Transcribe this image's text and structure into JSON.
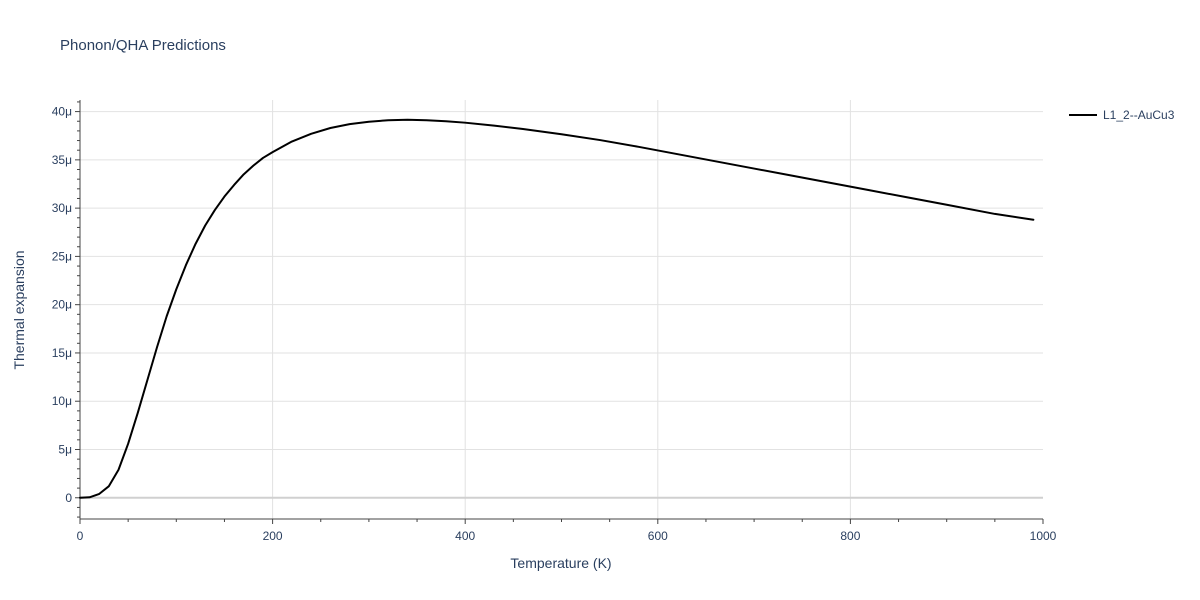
{
  "chart_data": {
    "type": "line",
    "title": "Phonon/QHA Predictions",
    "xlabel": "Temperature (K)",
    "ylabel": "Thermal expansion",
    "xlim": [
      0,
      1000
    ],
    "ylim": [
      -2.2e-06,
      4.12e-05
    ],
    "x_ticks": [
      0,
      200,
      400,
      600,
      800,
      1000
    ],
    "x_tick_labels": [
      "0",
      "200",
      "400",
      "600",
      "800",
      "1000"
    ],
    "y_ticks": [
      0,
      5e-06,
      1e-05,
      1.5e-05,
      2e-05,
      2.5e-05,
      3e-05,
      3.5e-05,
      4e-05
    ],
    "y_tick_labels": [
      "0",
      "5μ",
      "10μ",
      "15μ",
      "20μ",
      "25μ",
      "30μ",
      "35μ",
      "40μ"
    ],
    "grid": true,
    "legend_position": "top-right",
    "series": [
      {
        "name": "L1_2--AuCu3",
        "color": "#000000",
        "x": [
          0,
          10,
          20,
          30,
          40,
          50,
          60,
          70,
          80,
          90,
          100,
          110,
          120,
          130,
          140,
          150,
          160,
          170,
          180,
          190,
          200,
          220,
          240,
          260,
          280,
          300,
          320,
          340,
          360,
          380,
          400,
          430,
          460,
          500,
          540,
          580,
          620,
          660,
          700,
          740,
          780,
          820,
          860,
          900,
          950,
          990
        ],
        "y": [
          0,
          5e-08,
          4e-07,
          1.2e-06,
          2.9e-06,
          5.6e-06,
          8.8e-06,
          1.22e-05,
          1.56e-05,
          1.88e-05,
          2.16e-05,
          2.41e-05,
          2.63e-05,
          2.82e-05,
          2.98e-05,
          3.12e-05,
          3.24e-05,
          3.35e-05,
          3.44e-05,
          3.52e-05,
          3.58e-05,
          3.69e-05,
          3.77e-05,
          3.83e-05,
          3.87e-05,
          3.895e-05,
          3.91e-05,
          3.915e-05,
          3.91e-05,
          3.9e-05,
          3.885e-05,
          3.855e-05,
          3.82e-05,
          3.765e-05,
          3.705e-05,
          3.635e-05,
          3.56e-05,
          3.485e-05,
          3.41e-05,
          3.335e-05,
          3.26e-05,
          3.185e-05,
          3.11e-05,
          3.035e-05,
          2.94e-05,
          2.88e-05
        ]
      }
    ]
  }
}
